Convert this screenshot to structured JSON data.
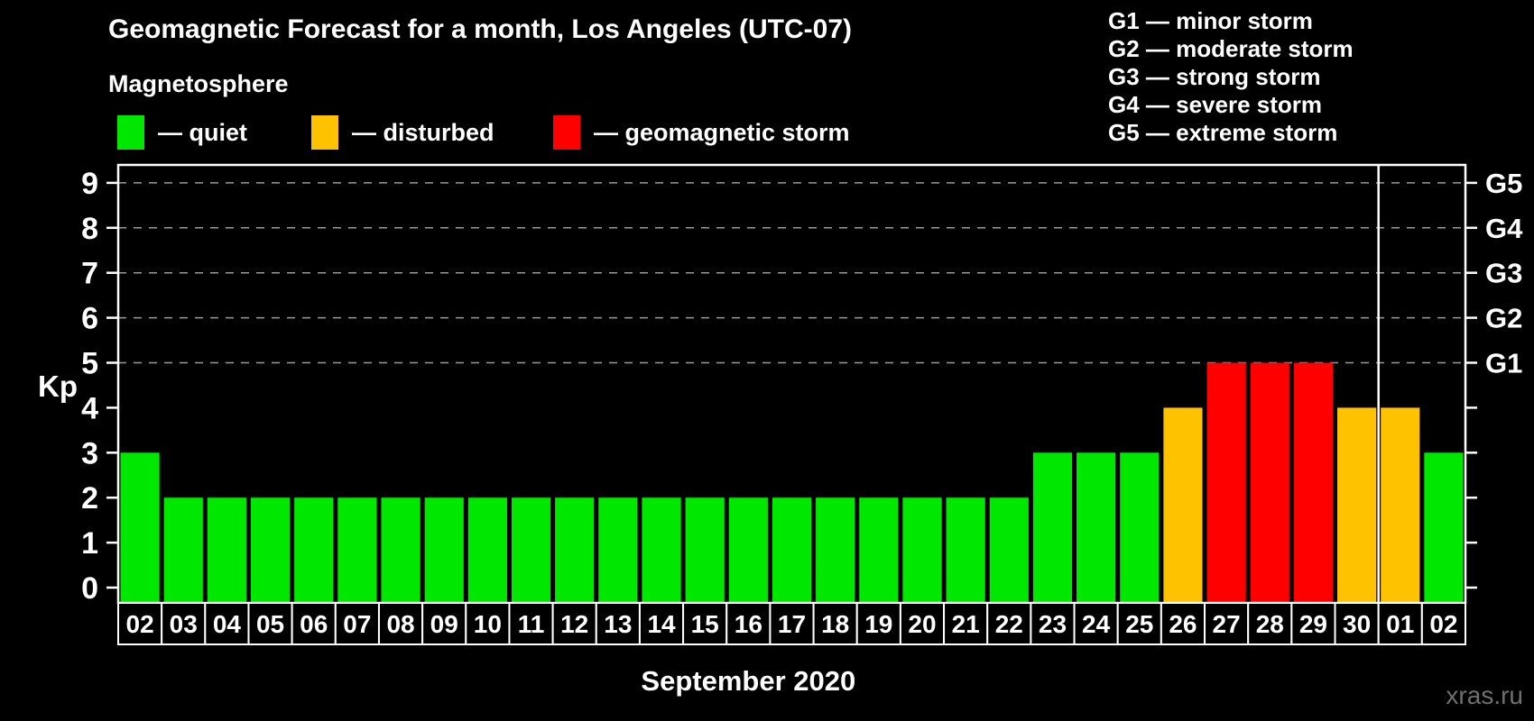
{
  "header": {
    "title": "Geomagnetic Forecast for a month, Los Angeles (UTC-07)",
    "subtitle": "Magnetosphere"
  },
  "legend": {
    "items": [
      {
        "key": "quiet",
        "label": "— quiet",
        "color": "#00e800"
      },
      {
        "key": "disturbed",
        "label": "— disturbed",
        "color": "#ffc200"
      },
      {
        "key": "storm",
        "label": "— geomagnetic storm",
        "color": "#ff0000"
      }
    ]
  },
  "storm_scale": {
    "items": [
      "G1 — minor storm",
      "G2 — moderate storm",
      "G3 — strong storm",
      "G4 — severe storm",
      "G5 — extreme storm"
    ]
  },
  "colors": {
    "quiet": "#00e800",
    "disturbed": "#ffc200",
    "storm": "#ff0000",
    "axis": "#ffffff",
    "grid": "#9a9a9a",
    "background": "#000000",
    "watermark": "#6f6f6f"
  },
  "chart_data": {
    "type": "bar",
    "title": "Geomagnetic Forecast for a month, Los Angeles (UTC-07)",
    "xlabel": "September 2020",
    "ylabel": "Kp",
    "ylim": [
      0,
      9
    ],
    "yticks": [
      0,
      1,
      2,
      3,
      4,
      5,
      6,
      7,
      8,
      9
    ],
    "gridlines": [
      5,
      6,
      7,
      8,
      9
    ],
    "grid_style": "dashed",
    "legend_position": "top",
    "right_ticks": [
      {
        "value": 5,
        "label": "G1"
      },
      {
        "value": 6,
        "label": "G2"
      },
      {
        "value": 7,
        "label": "G3"
      },
      {
        "value": 8,
        "label": "G4"
      },
      {
        "value": 9,
        "label": "G5"
      }
    ],
    "categories": [
      "02",
      "03",
      "04",
      "05",
      "06",
      "07",
      "08",
      "09",
      "10",
      "11",
      "12",
      "13",
      "14",
      "15",
      "16",
      "17",
      "18",
      "19",
      "20",
      "21",
      "22",
      "23",
      "24",
      "25",
      "26",
      "27",
      "28",
      "29",
      "30",
      "01",
      "02"
    ],
    "values": [
      3,
      2,
      2,
      2,
      2,
      2,
      2,
      2,
      2,
      2,
      2,
      2,
      2,
      2,
      2,
      2,
      2,
      2,
      2,
      2,
      2,
      3,
      3,
      3,
      4,
      5,
      5,
      5,
      4,
      4,
      3
    ],
    "statuses": [
      "quiet",
      "quiet",
      "quiet",
      "quiet",
      "quiet",
      "quiet",
      "quiet",
      "quiet",
      "quiet",
      "quiet",
      "quiet",
      "quiet",
      "quiet",
      "quiet",
      "quiet",
      "quiet",
      "quiet",
      "quiet",
      "quiet",
      "quiet",
      "quiet",
      "quiet",
      "quiet",
      "quiet",
      "disturbed",
      "storm",
      "storm",
      "storm",
      "disturbed",
      "disturbed",
      "quiet"
    ],
    "month_separator_after_index": 28
  },
  "watermark": "xras.ru"
}
